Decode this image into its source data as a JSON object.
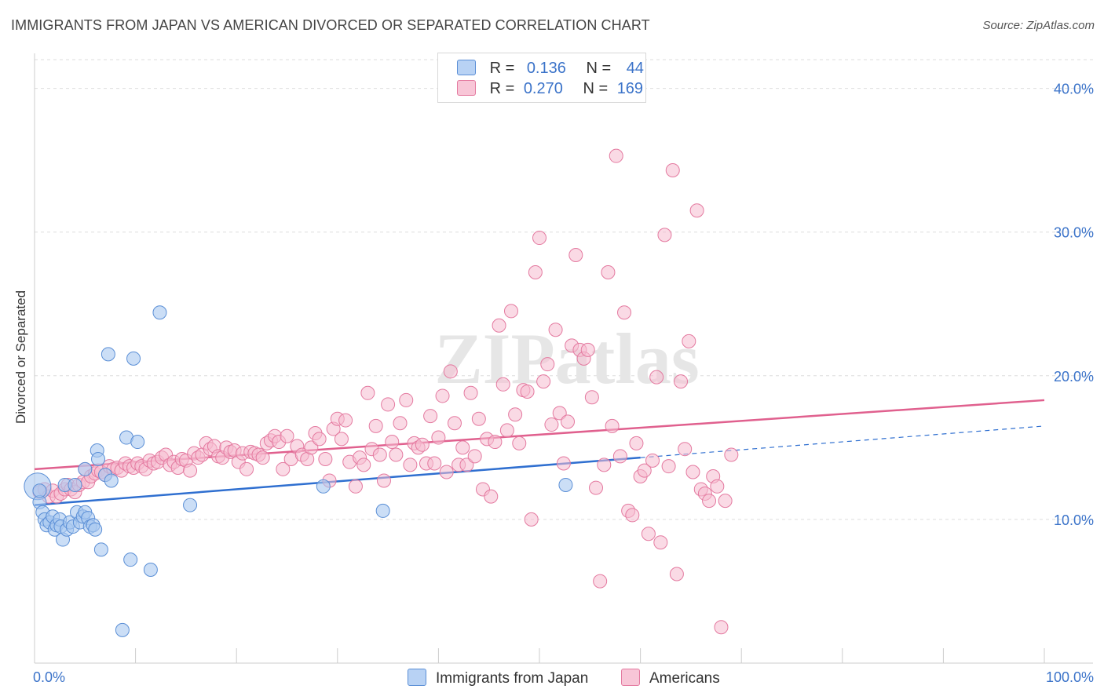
{
  "title": "IMMIGRANTS FROM JAPAN VS AMERICAN DIVORCED OR SEPARATED CORRELATION CHART",
  "source": "Source: ZipAtlas.com",
  "watermark": "ZIPatlas",
  "legend": {
    "series1": {
      "r_label": "R =",
      "r_value": "0.136",
      "n_label": "N =",
      "n_value": "44"
    },
    "series2": {
      "r_label": "R =",
      "r_value": "0.270",
      "n_label": "N =",
      "n_value": "169"
    }
  },
  "colors": {
    "japan_fill": "#a8c8f0",
    "japan_stroke": "#5b8fd6",
    "japan_line": "#2f6fd0",
    "american_fill": "#f6bcd0",
    "american_stroke": "#e47aa0",
    "american_line": "#e0608e",
    "axis_text": "#3b73c9",
    "grid": "#dddddd"
  },
  "chart_data": {
    "type": "scatter",
    "title": "IMMIGRANTS FROM JAPAN VS AMERICAN DIVORCED OR SEPARATED CORRELATION CHART",
    "xlabel": "",
    "ylabel": "Divorced or Separated",
    "xlim": [
      0,
      100
    ],
    "ylim": [
      0,
      42
    ],
    "x_tick_labels": [
      "0.0%",
      "100.0%"
    ],
    "y_ticks": [
      10,
      20,
      30,
      40
    ],
    "y_tick_labels": [
      "10.0%",
      "20.0%",
      "30.0%",
      "40.0%"
    ],
    "grid": true,
    "legend_position": "top-center",
    "series": [
      {
        "name": "Immigrants from Japan",
        "r": 0.136,
        "n": 44,
        "trend": {
          "x0": 0,
          "y0": 11.0,
          "x1": 60,
          "y1": 14.3,
          "dashed_to_x": 100,
          "dashed_y1": 16.5
        },
        "points": [
          [
            0.3,
            12.3
          ],
          [
            0.5,
            11.2
          ],
          [
            0.8,
            10.5
          ],
          [
            1.0,
            10.0
          ],
          [
            1.2,
            9.6
          ],
          [
            1.5,
            9.8
          ],
          [
            1.8,
            10.2
          ],
          [
            2.0,
            9.3
          ],
          [
            2.2,
            9.6
          ],
          [
            2.5,
            10.0
          ],
          [
            2.6,
            9.5
          ],
          [
            2.8,
            8.6
          ],
          [
            3.0,
            12.4
          ],
          [
            3.2,
            9.3
          ],
          [
            3.5,
            9.8
          ],
          [
            3.8,
            9.5
          ],
          [
            4.0,
            12.4
          ],
          [
            4.2,
            10.5
          ],
          [
            4.5,
            9.8
          ],
          [
            4.8,
            10.2
          ],
          [
            5.0,
            10.5
          ],
          [
            5.0,
            13.5
          ],
          [
            5.3,
            10.1
          ],
          [
            5.5,
            9.5
          ],
          [
            5.8,
            9.6
          ],
          [
            6.0,
            9.3
          ],
          [
            6.2,
            14.8
          ],
          [
            6.3,
            14.2
          ],
          [
            6.6,
            7.9
          ],
          [
            7.0,
            13.1
          ],
          [
            7.3,
            21.5
          ],
          [
            7.6,
            12.7
          ],
          [
            8.7,
            2.3
          ],
          [
            9.1,
            15.7
          ],
          [
            9.5,
            7.2
          ],
          [
            9.8,
            21.2
          ],
          [
            10.2,
            15.4
          ],
          [
            11.5,
            6.5
          ],
          [
            12.4,
            24.4
          ],
          [
            15.4,
            11.0
          ],
          [
            28.6,
            12.3
          ],
          [
            34.5,
            10.6
          ],
          [
            52.6,
            12.4
          ],
          [
            0.5,
            12.0
          ]
        ]
      },
      {
        "name": "Americans",
        "r": 0.27,
        "n": 169,
        "trend": {
          "x0": 0,
          "y0": 13.5,
          "x1": 100,
          "y1": 18.3
        },
        "points": [
          [
            0.5,
            11.9
          ],
          [
            1.0,
            12.1
          ],
          [
            1.4,
            11.6
          ],
          [
            1.8,
            12.0
          ],
          [
            2.2,
            11.6
          ],
          [
            2.6,
            11.8
          ],
          [
            3.0,
            12.1
          ],
          [
            3.3,
            12.4
          ],
          [
            3.6,
            12.1
          ],
          [
            4.0,
            11.9
          ],
          [
            4.4,
            12.4
          ],
          [
            4.8,
            12.6
          ],
          [
            5.0,
            13.5
          ],
          [
            5.3,
            12.6
          ],
          [
            5.6,
            13.0
          ],
          [
            6.0,
            13.2
          ],
          [
            6.3,
            13.4
          ],
          [
            6.6,
            13.3
          ],
          [
            7.0,
            13.1
          ],
          [
            7.4,
            13.7
          ],
          [
            7.8,
            13.5
          ],
          [
            8.2,
            13.6
          ],
          [
            8.6,
            13.4
          ],
          [
            9.0,
            13.9
          ],
          [
            9.4,
            13.7
          ],
          [
            9.8,
            13.6
          ],
          [
            10.2,
            13.9
          ],
          [
            10.6,
            13.7
          ],
          [
            11.0,
            13.5
          ],
          [
            11.4,
            14.1
          ],
          [
            11.8,
            13.9
          ],
          [
            12.2,
            14.0
          ],
          [
            12.6,
            14.3
          ],
          [
            13.0,
            14.5
          ],
          [
            13.4,
            13.8
          ],
          [
            13.8,
            14.0
          ],
          [
            14.2,
            13.6
          ],
          [
            14.6,
            14.2
          ],
          [
            15.0,
            14.1
          ],
          [
            15.4,
            13.4
          ],
          [
            15.8,
            14.6
          ],
          [
            16.2,
            14.3
          ],
          [
            16.6,
            14.5
          ],
          [
            17.0,
            15.3
          ],
          [
            17.4,
            14.9
          ],
          [
            17.8,
            15.1
          ],
          [
            18.2,
            14.4
          ],
          [
            18.6,
            14.3
          ],
          [
            19.0,
            15.0
          ],
          [
            19.4,
            14.7
          ],
          [
            19.8,
            14.8
          ],
          [
            20.2,
            14.0
          ],
          [
            20.6,
            14.6
          ],
          [
            21.0,
            13.5
          ],
          [
            21.4,
            14.7
          ],
          [
            21.8,
            14.6
          ],
          [
            22.2,
            14.5
          ],
          [
            22.6,
            14.3
          ],
          [
            23.0,
            15.3
          ],
          [
            23.4,
            15.5
          ],
          [
            23.8,
            15.8
          ],
          [
            24.2,
            15.4
          ],
          [
            24.6,
            13.5
          ],
          [
            25.0,
            15.8
          ],
          [
            25.4,
            14.2
          ],
          [
            26.0,
            15.1
          ],
          [
            26.5,
            14.5
          ],
          [
            27.0,
            14.2
          ],
          [
            27.4,
            15.0
          ],
          [
            27.8,
            16.0
          ],
          [
            28.2,
            15.6
          ],
          [
            28.8,
            14.2
          ],
          [
            29.2,
            12.7
          ],
          [
            29.6,
            16.3
          ],
          [
            30.0,
            17.0
          ],
          [
            30.4,
            15.6
          ],
          [
            30.8,
            16.9
          ],
          [
            31.2,
            14.0
          ],
          [
            31.8,
            12.3
          ],
          [
            32.2,
            14.3
          ],
          [
            32.6,
            13.8
          ],
          [
            33.0,
            18.8
          ],
          [
            33.4,
            14.9
          ],
          [
            33.8,
            16.5
          ],
          [
            34.2,
            14.5
          ],
          [
            34.6,
            12.7
          ],
          [
            35.0,
            18.0
          ],
          [
            35.4,
            15.4
          ],
          [
            35.8,
            14.5
          ],
          [
            36.2,
            16.7
          ],
          [
            36.8,
            18.3
          ],
          [
            37.2,
            13.8
          ],
          [
            37.6,
            15.3
          ],
          [
            38.0,
            15.0
          ],
          [
            38.4,
            15.2
          ],
          [
            38.8,
            13.9
          ],
          [
            39.2,
            17.2
          ],
          [
            39.6,
            13.9
          ],
          [
            40.0,
            15.7
          ],
          [
            40.4,
            18.6
          ],
          [
            40.8,
            13.3
          ],
          [
            41.2,
            20.3
          ],
          [
            41.6,
            16.7
          ],
          [
            42.0,
            13.8
          ],
          [
            42.4,
            15.0
          ],
          [
            42.8,
            13.8
          ],
          [
            43.2,
            18.8
          ],
          [
            43.6,
            14.4
          ],
          [
            44.0,
            17.0
          ],
          [
            44.4,
            12.1
          ],
          [
            44.8,
            15.6
          ],
          [
            45.2,
            11.6
          ],
          [
            45.6,
            15.4
          ],
          [
            46.0,
            23.5
          ],
          [
            46.4,
            19.4
          ],
          [
            46.8,
            16.2
          ],
          [
            47.2,
            24.5
          ],
          [
            47.6,
            17.3
          ],
          [
            48.0,
            15.3
          ],
          [
            48.4,
            19.0
          ],
          [
            48.8,
            18.9
          ],
          [
            49.2,
            10.0
          ],
          [
            49.6,
            27.2
          ],
          [
            50.0,
            29.6
          ],
          [
            50.4,
            19.6
          ],
          [
            50.8,
            20.8
          ],
          [
            51.2,
            16.6
          ],
          [
            51.6,
            23.2
          ],
          [
            52.0,
            17.4
          ],
          [
            52.4,
            13.9
          ],
          [
            52.8,
            16.8
          ],
          [
            53.2,
            22.1
          ],
          [
            53.6,
            28.4
          ],
          [
            54.0,
            21.8
          ],
          [
            54.4,
            21.2
          ],
          [
            54.8,
            21.8
          ],
          [
            55.2,
            18.5
          ],
          [
            55.6,
            12.2
          ],
          [
            56.0,
            5.7
          ],
          [
            56.4,
            13.8
          ],
          [
            56.8,
            27.2
          ],
          [
            57.2,
            16.5
          ],
          [
            57.6,
            35.3
          ],
          [
            58.0,
            14.4
          ],
          [
            58.4,
            24.4
          ],
          [
            58.8,
            10.6
          ],
          [
            59.2,
            10.3
          ],
          [
            59.6,
            15.3
          ],
          [
            60.0,
            13.0
          ],
          [
            60.4,
            13.4
          ],
          [
            60.8,
            9.0
          ],
          [
            61.2,
            14.1
          ],
          [
            61.6,
            19.9
          ],
          [
            62.0,
            8.4
          ],
          [
            62.4,
            29.8
          ],
          [
            62.8,
            13.7
          ],
          [
            63.2,
            34.3
          ],
          [
            63.6,
            6.2
          ],
          [
            64.0,
            19.6
          ],
          [
            64.4,
            14.9
          ],
          [
            64.8,
            22.4
          ],
          [
            65.2,
            13.3
          ],
          [
            65.6,
            31.5
          ],
          [
            66.0,
            12.1
          ],
          [
            66.4,
            11.8
          ],
          [
            66.8,
            11.3
          ],
          [
            67.2,
            13.0
          ],
          [
            67.6,
            12.3
          ],
          [
            68.0,
            2.5
          ],
          [
            68.4,
            11.3
          ],
          [
            69.0,
            14.5
          ]
        ]
      }
    ]
  },
  "bottom_legend": {
    "japan": "Immigrants from Japan",
    "americans": "Americans"
  }
}
